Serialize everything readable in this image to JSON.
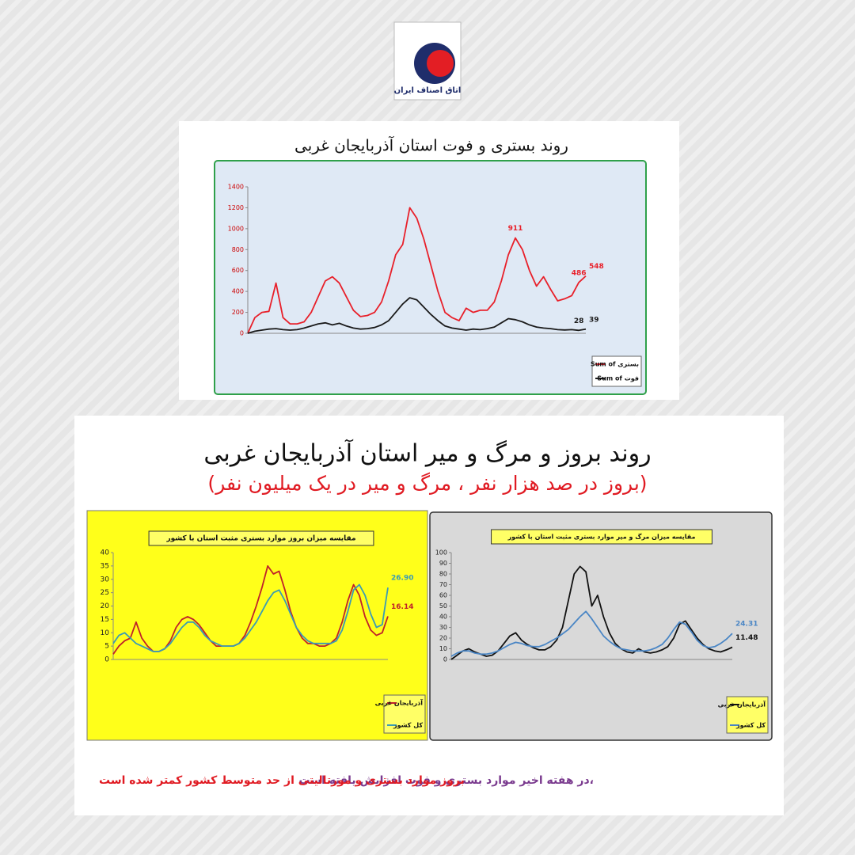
{
  "logo": {
    "text": "اتاق اصناف ایران"
  },
  "section": {
    "title": "روند بروز و مرگ و میر استان آذربایجان غربی",
    "subtitle": "(بروز در صد هزار نفر ، مرگ و میر در یک میلیون نفر)"
  },
  "footer": {
    "part1": "در هفته اخیر موارد بستری و فوت افزایش یافته است،",
    "part2": "بروز موارد بستری و مورتالیتی از حد متوسط کشور کمتر شده است"
  },
  "chart_data": [
    {
      "type": "line",
      "title": "روند بستری و فوت استان آذربایجان غربی",
      "ylim": [
        0,
        1400
      ],
      "yticks": [
        0,
        200,
        400,
        600,
        800,
        1000,
        1200,
        1400
      ],
      "legend": "right",
      "series": [
        {
          "name": "Sum of بستری",
          "color": "#e8202a",
          "values": [
            0,
            150,
            200,
            210,
            480,
            150,
            90,
            90,
            110,
            200,
            350,
            500,
            540,
            480,
            350,
            220,
            160,
            170,
            200,
            300,
            500,
            750,
            850,
            1200,
            1100,
            900,
            650,
            400,
            200,
            150,
            120,
            240,
            200,
            220,
            220,
            300,
            500,
            750,
            911,
            800,
            600,
            450,
            540,
            420,
            310,
            330,
            360,
            486,
            548
          ],
          "value_labels": [
            null,
            null,
            null,
            null,
            null,
            null,
            null,
            null,
            null,
            null,
            null,
            null,
            null,
            null,
            null,
            null,
            null,
            null,
            null,
            null,
            null,
            null,
            null,
            null,
            null,
            null,
            null,
            null,
            null,
            null,
            null,
            null,
            null,
            null,
            null,
            null,
            null,
            null,
            "911",
            null,
            null,
            null,
            null,
            null,
            null,
            null,
            null,
            "486",
            "548"
          ]
        },
        {
          "name": "Sum of فوت",
          "color": "#1a1a1a",
          "values": [
            0,
            20,
            30,
            40,
            45,
            35,
            30,
            35,
            50,
            70,
            90,
            100,
            80,
            95,
            70,
            50,
            40,
            45,
            55,
            80,
            120,
            200,
            280,
            340,
            320,
            250,
            180,
            120,
            70,
            50,
            40,
            30,
            40,
            35,
            45,
            60,
            100,
            140,
            130,
            110,
            80,
            60,
            50,
            45,
            35,
            32,
            35,
            28,
            39
          ],
          "value_labels": [
            null,
            null,
            null,
            null,
            null,
            null,
            null,
            null,
            null,
            null,
            null,
            null,
            null,
            null,
            null,
            null,
            null,
            null,
            null,
            null,
            null,
            null,
            null,
            null,
            null,
            null,
            null,
            null,
            null,
            null,
            null,
            null,
            null,
            null,
            null,
            null,
            null,
            null,
            null,
            null,
            null,
            null,
            null,
            null,
            null,
            null,
            null,
            "28",
            "39"
          ]
        }
      ]
    },
    {
      "type": "line",
      "title": "مقایسه میزان بروز موارد بستری مثبت استان با کشور",
      "ylim": [
        0,
        40
      ],
      "yticks": [
        0,
        5,
        10,
        15,
        20,
        25,
        30,
        35,
        40
      ],
      "legend": "right",
      "series": [
        {
          "name": "آذربایجان غربی",
          "color": "#c0202a",
          "values": [
            2,
            5,
            7,
            8,
            14,
            8,
            5,
            3,
            3,
            4,
            7,
            12,
            15,
            16,
            15,
            13,
            10,
            7,
            5,
            5,
            5,
            5,
            6,
            9,
            14,
            20,
            27,
            35,
            32,
            33,
            26,
            18,
            12,
            8,
            6,
            6,
            5,
            5,
            6,
            8,
            14,
            22,
            28,
            24,
            16,
            11,
            9,
            10,
            16.14
          ],
          "value_labels": [
            null,
            null,
            null,
            null,
            null,
            null,
            null,
            null,
            null,
            null,
            null,
            null,
            null,
            null,
            null,
            null,
            null,
            null,
            null,
            null,
            null,
            null,
            null,
            null,
            null,
            null,
            null,
            null,
            null,
            null,
            null,
            null,
            null,
            null,
            null,
            null,
            null,
            null,
            null,
            null,
            null,
            null,
            null,
            null,
            null,
            null,
            null,
            null,
            "16.14"
          ]
        },
        {
          "name": "کل کشور",
          "color": "#3a9bb5",
          "values": [
            6,
            9,
            10,
            8,
            6,
            5,
            4,
            3,
            3,
            4,
            6,
            9,
            12,
            14,
            14,
            12,
            9,
            7,
            6,
            5,
            5,
            5,
            6,
            8,
            11,
            14,
            18,
            22,
            25,
            26,
            22,
            17,
            12,
            9,
            7,
            6,
            6,
            6,
            6,
            7,
            11,
            18,
            26,
            28,
            24,
            17,
            12,
            13,
            26.9
          ],
          "value_labels": [
            null,
            null,
            null,
            null,
            null,
            null,
            null,
            null,
            null,
            null,
            null,
            null,
            null,
            null,
            null,
            null,
            null,
            null,
            null,
            null,
            null,
            null,
            null,
            null,
            null,
            null,
            null,
            null,
            null,
            null,
            null,
            null,
            null,
            null,
            null,
            null,
            null,
            null,
            null,
            null,
            null,
            null,
            null,
            null,
            null,
            null,
            null,
            null,
            "26.90"
          ]
        }
      ]
    },
    {
      "type": "line",
      "title": "مقایسه میزان مرگ و میر موارد بستری مثبت استان با کشور",
      "ylim": [
        0,
        100
      ],
      "yticks": [
        0,
        10,
        20,
        30,
        40,
        50,
        60,
        70,
        80,
        90,
        100
      ],
      "legend": "right",
      "series": [
        {
          "name": "آذربایجان غربی",
          "color": "#111111",
          "values": [
            0,
            4,
            8,
            10,
            7,
            5,
            3,
            4,
            8,
            15,
            22,
            25,
            18,
            14,
            11,
            9,
            9,
            12,
            18,
            30,
            55,
            80,
            87,
            82,
            50,
            60,
            40,
            25,
            15,
            10,
            7,
            6,
            10,
            7,
            6,
            7,
            9,
            12,
            20,
            33,
            36,
            28,
            20,
            14,
            10,
            8,
            7,
            9,
            11.48
          ],
          "value_labels": [
            null,
            null,
            null,
            null,
            null,
            null,
            null,
            null,
            null,
            null,
            null,
            null,
            null,
            null,
            null,
            null,
            null,
            null,
            null,
            null,
            null,
            null,
            null,
            null,
            null,
            null,
            null,
            null,
            null,
            null,
            null,
            null,
            null,
            null,
            null,
            null,
            null,
            null,
            null,
            null,
            null,
            null,
            null,
            null,
            null,
            null,
            null,
            null,
            "11.48"
          ]
        },
        {
          "name": "کل کشور",
          "color": "#4a86c5",
          "values": [
            3,
            6,
            8,
            8,
            6,
            5,
            5,
            6,
            8,
            11,
            14,
            16,
            15,
            13,
            12,
            12,
            14,
            17,
            20,
            24,
            28,
            34,
            40,
            45,
            38,
            30,
            22,
            17,
            13,
            10,
            9,
            8,
            8,
            8,
            9,
            11,
            14,
            20,
            28,
            35,
            33,
            26,
            18,
            13,
            11,
            12,
            15,
            19,
            24.31
          ],
          "value_labels": [
            null,
            null,
            null,
            null,
            null,
            null,
            null,
            null,
            null,
            null,
            null,
            null,
            null,
            null,
            null,
            null,
            null,
            null,
            null,
            null,
            null,
            null,
            null,
            null,
            null,
            null,
            null,
            null,
            null,
            null,
            null,
            null,
            null,
            null,
            null,
            null,
            null,
            null,
            null,
            null,
            null,
            null,
            null,
            null,
            null,
            null,
            null,
            null,
            "24.31"
          ]
        }
      ]
    }
  ]
}
